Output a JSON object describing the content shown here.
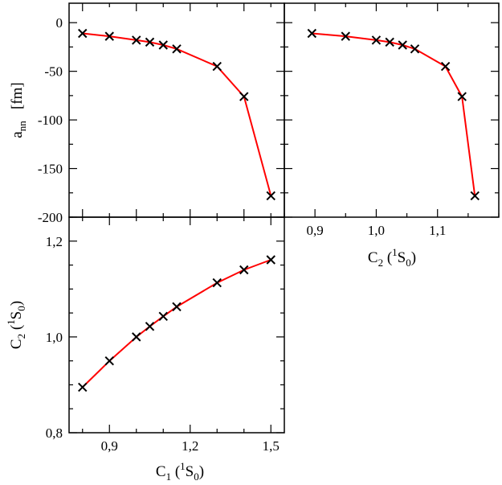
{
  "chart_data": [
    {
      "id": "top-left",
      "type": "line",
      "xlim": [
        0.75,
        1.55
      ],
      "ylim": [
        -200,
        20
      ],
      "x": [
        0.8,
        0.9,
        1.0,
        1.05,
        1.1,
        1.15,
        1.3,
        1.4,
        1.5
      ],
      "y": [
        -11,
        -14,
        -18,
        -20,
        -23,
        -27,
        -45,
        -76,
        -178
      ],
      "ylabel": {
        "main": "a",
        "sub": "nn",
        "unit": "[fm]"
      },
      "yticks_major": [
        0,
        -50,
        -100,
        -150,
        -200
      ],
      "yticklabels": [
        "0",
        "-50",
        "-100",
        "-150",
        "-200"
      ],
      "series_color": "#ff0000",
      "marker": "x"
    },
    {
      "id": "top-right",
      "type": "line",
      "xlim": [
        0.85,
        1.2
      ],
      "ylim": [
        -200,
        20
      ],
      "x": [
        0.895,
        0.95,
        1.0,
        1.022,
        1.043,
        1.063,
        1.113,
        1.14,
        1.161
      ],
      "y": [
        -11,
        -14,
        -18,
        -20,
        -23,
        -27,
        -45,
        -76,
        -178
      ],
      "xlabel": {
        "main": "C",
        "sub": "2",
        "paren_open": " (",
        "sup": "1",
        "letter": "S",
        "sub2": "0",
        "paren_close": ")"
      },
      "xticks_major": [
        0.9,
        1.0,
        1.1
      ],
      "xticklabels": [
        "0,9",
        "1,0",
        "1,1"
      ],
      "series_color": "#ff0000",
      "marker": "x"
    },
    {
      "id": "bottom-left",
      "type": "line",
      "xlim": [
        0.75,
        1.55
      ],
      "ylim": [
        0.8,
        1.25
      ],
      "x": [
        0.8,
        0.9,
        1.0,
        1.05,
        1.1,
        1.15,
        1.3,
        1.4,
        1.5
      ],
      "y": [
        0.895,
        0.95,
        1.0,
        1.022,
        1.043,
        1.063,
        1.113,
        1.14,
        1.161
      ],
      "xlabel": {
        "main": "C",
        "sub": "1",
        "paren_open": " (",
        "sup": "1",
        "letter": "S",
        "sub2": "0",
        "paren_close": ")"
      },
      "ylabel": {
        "main": "C",
        "sub": "2",
        "paren_open": " (",
        "sup": "1",
        "letter": "S",
        "sub2": "0",
        "paren_close": ")"
      },
      "xticks_major": [
        0.9,
        1.2,
        1.5
      ],
      "xticklabels": [
        "0,9",
        "1,2",
        "1,5"
      ],
      "yticks_major": [
        0.8,
        1.0,
        1.2
      ],
      "yticklabels": [
        "0,8",
        "1,0",
        "1,2"
      ],
      "series_color": "#ff0000",
      "marker": "x"
    }
  ]
}
